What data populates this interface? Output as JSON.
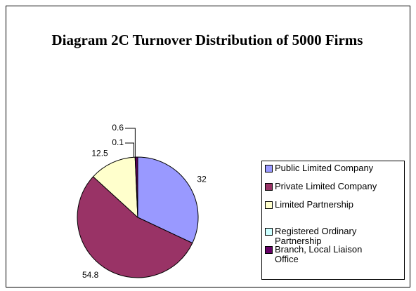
{
  "chart_data": {
    "type": "pie",
    "title": "Diagram 2C  Turnover Distribution of 5000 Firms",
    "categories": [
      "Public Limited Company",
      "Private Limited Company",
      "Limited Partnership",
      "Registered Ordinary Partnership",
      "Branch, Local Liaison Office"
    ],
    "values": [
      32,
      54.8,
      12.5,
      0.1,
      0.6
    ],
    "colors": [
      "#9999ff",
      "#993366",
      "#ffffcc",
      "#ccffff",
      "#660066"
    ],
    "legend": "right"
  }
}
